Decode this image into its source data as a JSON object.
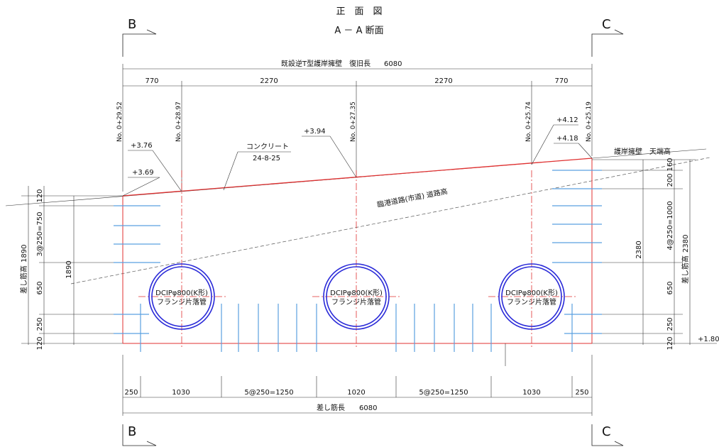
{
  "titles": {
    "main": "正　面　図",
    "section": "A － A 断面"
  },
  "section_marks": {
    "left": "B",
    "right": "C"
  },
  "overall": {
    "title": "既設逆T型護岸擁壁　復旧長",
    "length": "6080"
  },
  "top_dims": [
    "770",
    "2270",
    "2270",
    "770"
  ],
  "stations": [
    "No. 0+29.52",
    "No. 0+28.97",
    "No. 0+27.35",
    "No. 0+25.74",
    "No. 0+25.19"
  ],
  "elevations": {
    "e1": "+3.69",
    "e2": "+3.76",
    "e3": "+3.94",
    "e4": "+4.12",
    "e5": "+4.18",
    "base": "+1.80"
  },
  "annotations": {
    "concrete": "コンクリート",
    "concrete_sub": "24-8-25",
    "crest": "護岸擁壁　天端高",
    "road": "臨港道路(市道) 道路高"
  },
  "pipes": [
    {
      "line1": "DCIPφ800(K形)",
      "line2": "フランジ片落管"
    },
    {
      "line1": "DCIPφ800(K形)",
      "line2": "フランジ片落管"
    },
    {
      "line1": "DCIPφ800(K形)",
      "line2": "フランジ片落管"
    }
  ],
  "left_dims": {
    "title": "差し筋高",
    "total": "1890",
    "segments": [
      "120",
      "3@250=750",
      "650",
      "250",
      "120"
    ],
    "wall_height": "1890"
  },
  "right_dims": {
    "title": "差し筋高",
    "total": "2380",
    "segments": [
      "160",
      "200",
      "4@250=1000",
      "650",
      "250",
      "120"
    ],
    "wall_height": "2380"
  },
  "bottom_dims": [
    "250",
    "1030",
    "5@250=1250",
    "1020",
    "5@250=1250",
    "1030",
    "250"
  ],
  "bottom_total": {
    "title": "差し筋長",
    "length": "6080"
  },
  "colors": {
    "concrete_line": "#e03030",
    "rebar": "#5aa0e0",
    "pipe": "#2a2ad8"
  }
}
